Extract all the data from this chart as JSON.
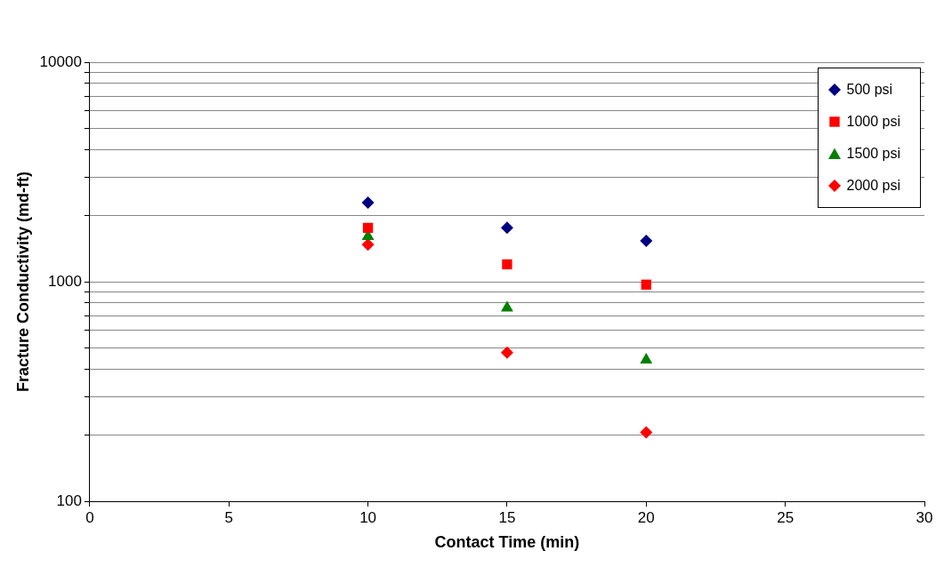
{
  "chart_data": {
    "type": "scatter",
    "xlabel": "Contact Time (min)",
    "ylabel": "Fracture Conductivity (md-ft)",
    "x": [
      10,
      15,
      20
    ],
    "series": [
      {
        "name": "500 psi",
        "color": "#000080",
        "marker": "diamond",
        "values": [
          2290,
          1760,
          1535
        ]
      },
      {
        "name": "1000 psi",
        "color": "#ff0000",
        "marker": "square",
        "values": [
          1760,
          1200,
          970
        ]
      },
      {
        "name": "1500 psi",
        "color": "#008000",
        "marker": "triangle",
        "values": [
          1610,
          760,
          440
        ]
      },
      {
        "name": "2000 psi",
        "color": "#ff0000",
        "marker": "diamond",
        "values": [
          1475,
          476,
          206
        ]
      }
    ],
    "xlim": [
      0,
      30
    ],
    "xticks": [
      0,
      5,
      10,
      15,
      20,
      25,
      30
    ],
    "ylim": [
      100,
      10000
    ],
    "yticks": [
      100,
      {
        "value": 200,
        "label": null
      },
      {
        "value": 300,
        "label": null
      },
      {
        "value": 400,
        "label": null
      },
      {
        "value": 500,
        "label": null
      },
      {
        "value": 600,
        "label": null
      },
      {
        "value": 700,
        "label": null
      },
      {
        "value": 800,
        "label": null
      },
      {
        "value": 900,
        "label": null
      },
      1000,
      {
        "value": 2000,
        "label": null
      },
      {
        "value": 3000,
        "label": null
      },
      {
        "value": 4000,
        "label": null
      },
      {
        "value": 5000,
        "label": null
      },
      {
        "value": 6000,
        "label": null
      },
      {
        "value": 7000,
        "label": null
      },
      {
        "value": 8000,
        "label": null
      },
      {
        "value": 9000,
        "label": null
      },
      10000
    ],
    "log": "y",
    "grid": "y",
    "legend": "top right"
  }
}
